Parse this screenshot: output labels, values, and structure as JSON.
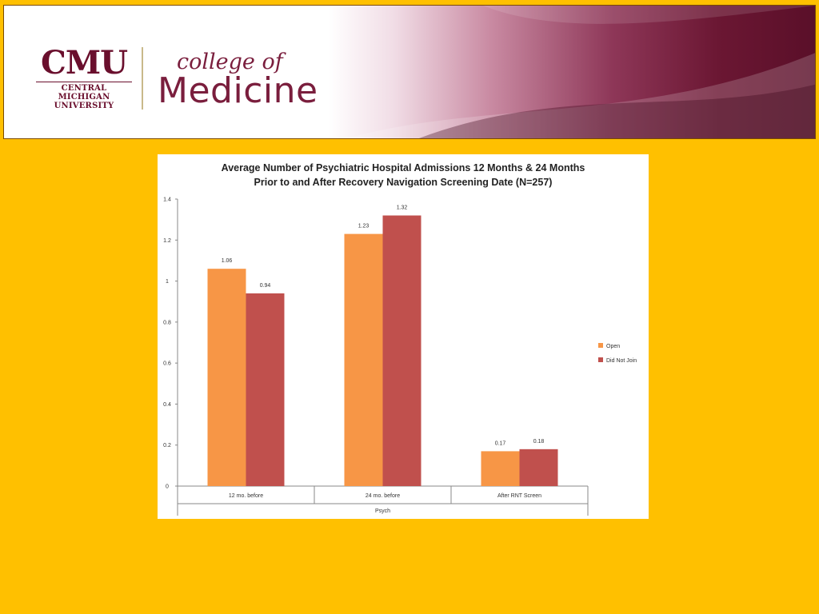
{
  "banner": {
    "logo_letters": "CMU",
    "logo_sub_line1": "CENTRAL MICHIGAN",
    "logo_sub_line2": "UNIVERSITY",
    "college_of": "college of",
    "medicine": "Medicine",
    "colors": {
      "maroon": "#6a0f2d",
      "gold": "#FFC000"
    }
  },
  "chart_data": {
    "type": "bar",
    "title_line1": "Average Number of Psychiatric Hospital Admissions 12 Months & 24 Months",
    "title_line2": "Prior to and After Recovery Navigation Screening Date (N=257)",
    "categories": [
      "12 mo. before",
      "24 mo. before",
      "After RNT Screen"
    ],
    "group_label": "Psych",
    "series": [
      {
        "name": "Open",
        "values": [
          1.06,
          1.23,
          0.17
        ],
        "labels": [
          "1.06",
          "1.23",
          "0.17"
        ],
        "color": "#F79646"
      },
      {
        "name": "Did Not Join",
        "values": [
          0.94,
          1.32,
          0.18
        ],
        "labels": [
          "0.94",
          "1.32",
          "0.18"
        ],
        "color": "#C0504D"
      }
    ],
    "ylim": [
      0,
      1.4
    ],
    "yticks": [
      "0",
      "0.2",
      "0.4",
      "0.6",
      "0.8",
      "1",
      "1.2",
      "1.4"
    ],
    "grid": false,
    "legend_position": "right"
  }
}
